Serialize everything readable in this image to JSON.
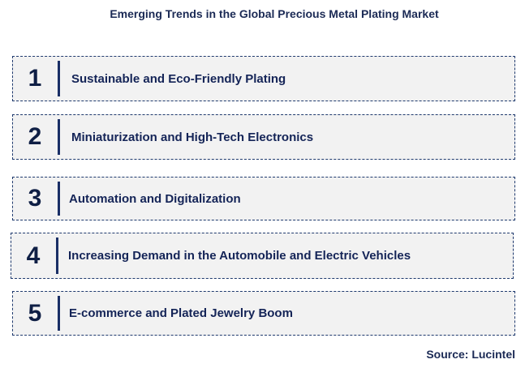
{
  "title": "Emerging Trends in the Global Precious Metal Plating Market",
  "trends": [
    {
      "number": "1",
      "label": "Sustainable and Eco-Friendly Plating"
    },
    {
      "number": "2",
      "label": "Miniaturization and High-Tech Electronics"
    },
    {
      "number": "3",
      "label": "Automation and Digitalization"
    },
    {
      "number": "4",
      "label": "Increasing Demand in the Automobile and Electric Vehicles"
    },
    {
      "number": "5",
      "label": "E-commerce and Plated Jewelry Boom"
    }
  ],
  "source": "Source: Lucintel",
  "colors": {
    "text": "#1b2a55",
    "box_fill": "#f2f2f2",
    "box_border": "#1f3a6e",
    "accent_bar": "#1a2f66"
  }
}
